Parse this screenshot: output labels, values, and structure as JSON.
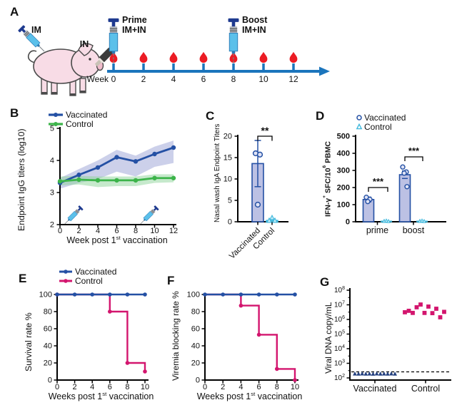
{
  "colors": {
    "navy": "#2450a4",
    "green": "#3cb44a",
    "magenta": "#d3156e",
    "cyan": "#41b9dd",
    "cyan_fill": "#cdeef8",
    "bar_fill": "#bcc1e4",
    "band_blue": "#9aa2d5",
    "band_green": "#8ed49a",
    "timeline_blue": "#1b75bc",
    "blood_red": "#ec1c24",
    "pig_pink": "#f8dce6",
    "pig_snout": "#f0bccb",
    "pig_outline": "#4a4a4a",
    "axis": "#000000",
    "point_fill": "#dfe3f5",
    "syringe_blue": "#5bc0ea",
    "syringe_navy": "#1e3a8f"
  },
  "panel_a": {
    "label": "A",
    "im_label": "IM",
    "in_label": "IN",
    "prime_lines": [
      "Prime",
      "IM+IN"
    ],
    "boost_lines": [
      "Boost",
      "IM+IN"
    ],
    "week_word": "Week",
    "weeks": [
      0,
      2,
      4,
      6,
      8,
      10,
      12
    ],
    "syringe_weeks": [
      0,
      8
    ]
  },
  "chart_data": {
    "b": {
      "panel": "B",
      "type": "line",
      "ylabel": "Endpoint IgG titers (log10)",
      "xlabel_parts": [
        "Week post 1",
        "st",
        " vaccination"
      ],
      "x": [
        0,
        2,
        4,
        6,
        8,
        10,
        12
      ],
      "xticks": [
        0,
        2,
        4,
        6,
        8,
        10,
        12
      ],
      "yticks": [
        2,
        3,
        4,
        5
      ],
      "xlim": [
        0,
        12
      ],
      "ylim": [
        2,
        5
      ],
      "legend_position": "top-left",
      "series": [
        {
          "name": "Vaccinated",
          "color": "#2450a4",
          "band_color": "#9aa2d5",
          "values": [
            3.3,
            3.55,
            3.78,
            4.1,
            3.97,
            4.2,
            4.4
          ],
          "upper": [
            3.45,
            3.73,
            4.0,
            4.33,
            4.15,
            4.43,
            4.62
          ],
          "lower": [
            3.12,
            3.3,
            3.42,
            3.65,
            3.5,
            3.8,
            3.92
          ]
        },
        {
          "name": "Control",
          "color": "#3cb44a",
          "band_color": "#8ed49a",
          "values": [
            3.35,
            3.4,
            3.38,
            3.38,
            3.38,
            3.45,
            3.45
          ],
          "upper": [
            3.5,
            3.52,
            3.5,
            3.5,
            3.5,
            3.57,
            3.57
          ],
          "lower": [
            3.22,
            3.25,
            3.17,
            3.2,
            3.2,
            3.3,
            3.32
          ]
        }
      ],
      "syringe_marker_weeks": [
        0.5,
        8.5
      ]
    },
    "c": {
      "panel": "C",
      "type": "bar",
      "ylabel": "Nasal wash IgA Endpoint Titers",
      "categories": [
        "Vaccinated",
        "Control"
      ],
      "values": [
        13.6,
        0.3
      ],
      "whisker_high": [
        19,
        0
      ],
      "whisker_low": [
        8.2,
        0
      ],
      "points": [
        [
          16,
          15.7,
          4
        ],
        [
          0.9,
          0.25,
          0.25
        ]
      ],
      "yticks": [
        0,
        5,
        10,
        15,
        20
      ],
      "ylim": [
        0,
        20
      ],
      "significance": "**"
    },
    "d": {
      "panel": "D",
      "type": "grouped_bar",
      "ylabel_parts": [
        "IFN-γ",
        "+",
        " SFC/10",
        "6",
        " PBMC"
      ],
      "groups": [
        "prime",
        "boost"
      ],
      "legend": [
        "Vaccinated",
        "Control"
      ],
      "yticks": [
        0,
        100,
        200,
        300,
        400,
        500
      ],
      "ylim": [
        0,
        500
      ],
      "vaccinated": {
        "values": [
          130,
          275
        ],
        "errors": [
          14,
          22
        ],
        "points": [
          [
            143,
            131,
            118
          ],
          [
            320,
            291,
            284,
            205
          ]
        ]
      },
      "control": {
        "values": [
          4,
          4
        ],
        "points": [
          [
            3,
            5,
            2
          ],
          [
            3,
            5,
            2
          ]
        ]
      },
      "significance": [
        "***",
        "***"
      ]
    },
    "e": {
      "panel": "E",
      "type": "step",
      "ylabel": "Survival rate %",
      "xlabel_parts": [
        "Weeks post 1",
        "st",
        " vaccination"
      ],
      "legend": [
        "Vaccinated",
        "Control"
      ],
      "xticks": [
        0,
        2,
        4,
        6,
        8,
        10
      ],
      "yticks": [
        0,
        20,
        40,
        60,
        80,
        100
      ],
      "xlim": [
        0,
        10
      ],
      "ylim": [
        0,
        100
      ],
      "vaccinated": {
        "color": "#2450a4",
        "marker_x": [
          0,
          2,
          4,
          6,
          8,
          10
        ],
        "y": 100
      },
      "control": {
        "color": "#d3156e",
        "steps": [
          [
            0,
            100
          ],
          [
            6,
            100
          ],
          [
            6,
            80
          ],
          [
            8,
            80
          ],
          [
            8,
            20
          ],
          [
            10,
            20
          ],
          [
            10,
            10
          ]
        ],
        "markers": [
          [
            0,
            100
          ],
          [
            6,
            80
          ],
          [
            8,
            20
          ],
          [
            10,
            10
          ]
        ]
      }
    },
    "f": {
      "panel": "F",
      "type": "step",
      "ylabel": "Viremia blocking rate %",
      "xlabel_parts": [
        "Weeks post 1",
        "st",
        " vaccination"
      ],
      "xticks": [
        0,
        2,
        4,
        6,
        8,
        10
      ],
      "yticks": [
        0,
        20,
        40,
        60,
        80,
        100
      ],
      "xlim": [
        0,
        10
      ],
      "ylim": [
        0,
        100
      ],
      "vaccinated": {
        "color": "#2450a4",
        "marker_x": [
          0,
          2,
          4,
          6,
          8,
          10
        ],
        "y": 100
      },
      "control": {
        "color": "#d3156e",
        "steps": [
          [
            0,
            100
          ],
          [
            4,
            100
          ],
          [
            4,
            87
          ],
          [
            6,
            87
          ],
          [
            6,
            53
          ],
          [
            8,
            53
          ],
          [
            8,
            13
          ],
          [
            10,
            13
          ],
          [
            10,
            0
          ]
        ],
        "markers": [
          [
            4,
            87
          ],
          [
            6,
            53
          ],
          [
            8,
            13
          ],
          [
            10,
            0
          ]
        ]
      }
    },
    "g": {
      "panel": "G",
      "type": "scatter",
      "ylabel": "Viral DNA copy/mL",
      "categories": [
        "Vaccinated",
        "Control"
      ],
      "ytick_exponents": [
        2,
        3,
        4,
        5,
        6,
        7,
        8
      ],
      "detection_limit": 260,
      "series": [
        {
          "name": "Vaccinated",
          "marker": "triangle",
          "color": "#24407f",
          "values": [
            190,
            186,
            192,
            187,
            190,
            185,
            191,
            188,
            190,
            186,
            191,
            187
          ]
        },
        {
          "name": "Control",
          "marker": "square",
          "color": "#d3156e",
          "values": [
            3100000,
            3900000,
            2800000,
            6800000,
            10500000,
            2800000,
            7600000,
            2700000,
            5400000,
            1400000,
            3300000
          ]
        }
      ]
    }
  }
}
